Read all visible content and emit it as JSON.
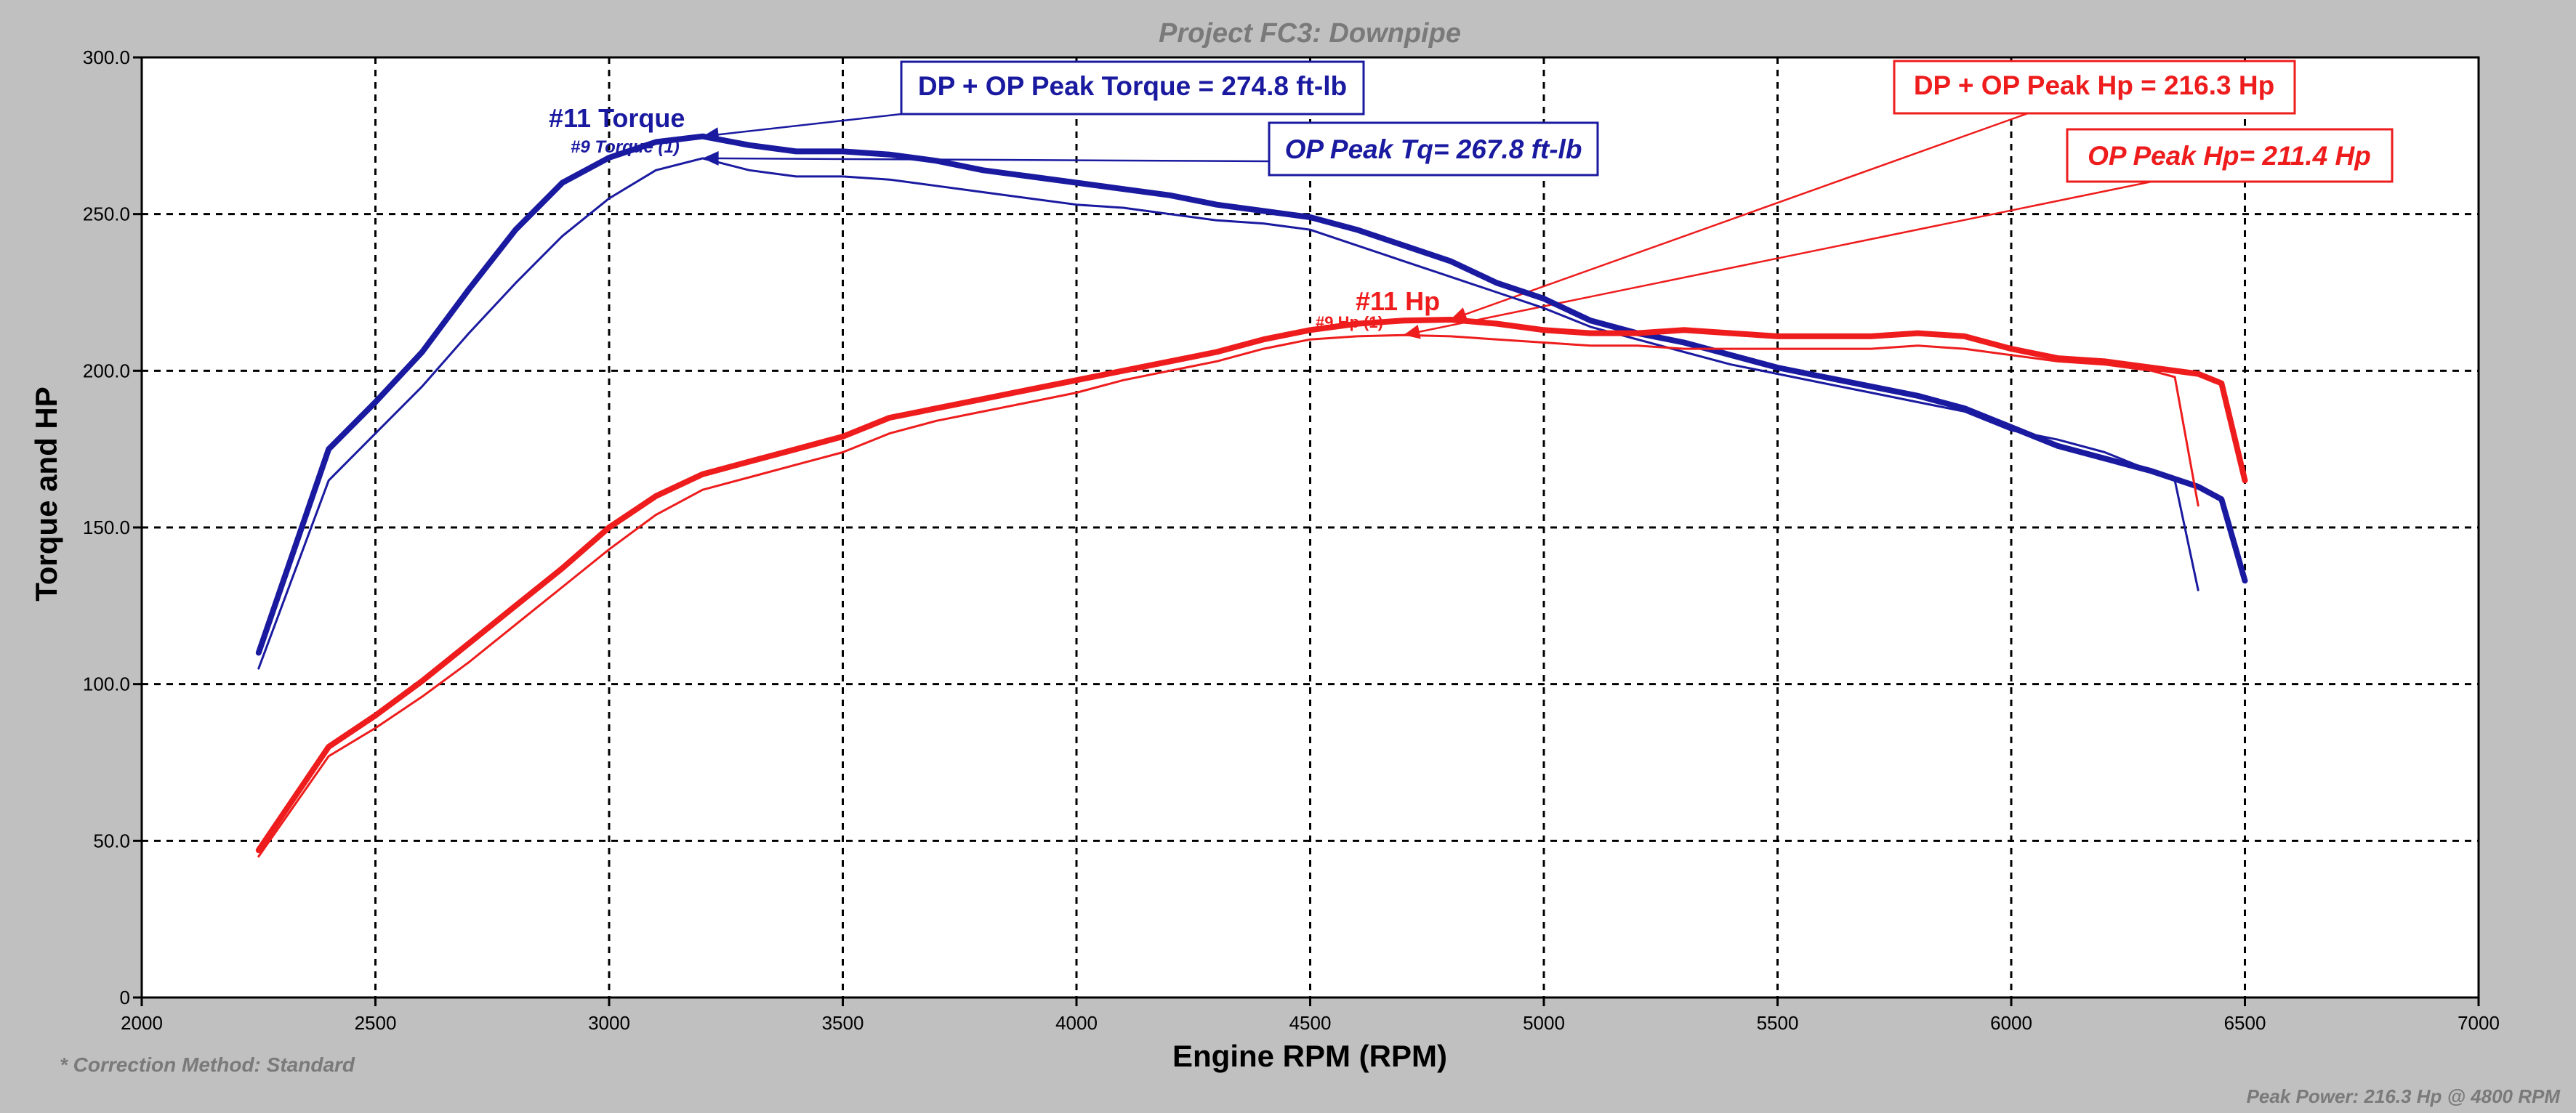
{
  "chart_data": {
    "type": "line",
    "title": "Project FC3: Downpipe",
    "xlabel": "Engine RPM (RPM)",
    "ylabel": "Torque and HP",
    "xlim": [
      2000,
      7000
    ],
    "ylim": [
      0,
      300
    ],
    "x_ticks": [
      2000,
      2500,
      3000,
      3500,
      4000,
      4500,
      5000,
      5500,
      6000,
      6500,
      7000
    ],
    "y_ticks": [
      0,
      50,
      100,
      150,
      200,
      250,
      300
    ],
    "y_tick_labels": [
      "0",
      "50.0",
      "100.0",
      "150.0",
      "200.0",
      "250.0",
      "300.0"
    ],
    "grid": true,
    "series": [
      {
        "name": "#11 Torque",
        "color": "#1a1aa0",
        "weight": "thick",
        "points": [
          [
            2250,
            110
          ],
          [
            2400,
            175
          ],
          [
            2500,
            190
          ],
          [
            2600,
            206
          ],
          [
            2700,
            226
          ],
          [
            2800,
            245
          ],
          [
            2900,
            260
          ],
          [
            3000,
            268
          ],
          [
            3100,
            273
          ],
          [
            3200,
            274.8
          ],
          [
            3300,
            272
          ],
          [
            3400,
            270
          ],
          [
            3500,
            270
          ],
          [
            3600,
            269
          ],
          [
            3700,
            267
          ],
          [
            3800,
            264
          ],
          [
            3900,
            262
          ],
          [
            4000,
            260
          ],
          [
            4100,
            258
          ],
          [
            4200,
            256
          ],
          [
            4300,
            253
          ],
          [
            4400,
            251
          ],
          [
            4500,
            249
          ],
          [
            4600,
            245
          ],
          [
            4700,
            240
          ],
          [
            4800,
            235
          ],
          [
            4900,
            228
          ],
          [
            5000,
            223
          ],
          [
            5100,
            216
          ],
          [
            5200,
            212
          ],
          [
            5300,
            209
          ],
          [
            5400,
            205
          ],
          [
            5500,
            201
          ],
          [
            5600,
            198
          ],
          [
            5700,
            195
          ],
          [
            5800,
            192
          ],
          [
            5900,
            188
          ],
          [
            6000,
            182
          ],
          [
            6100,
            176
          ],
          [
            6200,
            172
          ],
          [
            6300,
            168
          ],
          [
            6400,
            163
          ],
          [
            6450,
            159
          ],
          [
            6500,
            133
          ]
        ]
      },
      {
        "name": "#9 Torque (1)",
        "color": "#1a1aa0",
        "weight": "thin",
        "points": [
          [
            2250,
            105
          ],
          [
            2400,
            165
          ],
          [
            2500,
            180
          ],
          [
            2600,
            195
          ],
          [
            2700,
            212
          ],
          [
            2800,
            228
          ],
          [
            2900,
            243
          ],
          [
            3000,
            255
          ],
          [
            3100,
            264
          ],
          [
            3200,
            267.8
          ],
          [
            3300,
            264
          ],
          [
            3400,
            262
          ],
          [
            3500,
            262
          ],
          [
            3600,
            261
          ],
          [
            3700,
            259
          ],
          [
            3800,
            257
          ],
          [
            3900,
            255
          ],
          [
            4000,
            253
          ],
          [
            4100,
            252
          ],
          [
            4200,
            250
          ],
          [
            4300,
            248
          ],
          [
            4400,
            247
          ],
          [
            4500,
            245
          ],
          [
            4600,
            240
          ],
          [
            4700,
            235
          ],
          [
            4800,
            230
          ],
          [
            4900,
            225
          ],
          [
            5000,
            220
          ],
          [
            5100,
            214
          ],
          [
            5200,
            210
          ],
          [
            5300,
            206
          ],
          [
            5400,
            202
          ],
          [
            5500,
            199
          ],
          [
            5600,
            196
          ],
          [
            5700,
            193
          ],
          [
            5800,
            190
          ],
          [
            5900,
            187
          ],
          [
            6000,
            181
          ],
          [
            6100,
            178
          ],
          [
            6200,
            174
          ],
          [
            6300,
            168
          ],
          [
            6350,
            165
          ],
          [
            6400,
            130
          ]
        ]
      },
      {
        "name": "#11 Hp",
        "color": "#ee1c1c",
        "weight": "thick",
        "points": [
          [
            2250,
            47
          ],
          [
            2400,
            80
          ],
          [
            2500,
            90
          ],
          [
            2600,
            101
          ],
          [
            2700,
            113
          ],
          [
            2800,
            125
          ],
          [
            2900,
            137
          ],
          [
            3000,
            150
          ],
          [
            3100,
            160
          ],
          [
            3200,
            167
          ],
          [
            3300,
            171
          ],
          [
            3400,
            175
          ],
          [
            3500,
            179
          ],
          [
            3600,
            185
          ],
          [
            3700,
            188
          ],
          [
            3800,
            191
          ],
          [
            3900,
            194
          ],
          [
            4000,
            197
          ],
          [
            4100,
            200
          ],
          [
            4200,
            203
          ],
          [
            4300,
            206
          ],
          [
            4400,
            210
          ],
          [
            4500,
            213
          ],
          [
            4600,
            215
          ],
          [
            4700,
            216
          ],
          [
            4800,
            216.3
          ],
          [
            4900,
            215
          ],
          [
            5000,
            213
          ],
          [
            5100,
            212
          ],
          [
            5200,
            212
          ],
          [
            5300,
            213
          ],
          [
            5400,
            212
          ],
          [
            5500,
            211
          ],
          [
            5600,
            211
          ],
          [
            5700,
            211
          ],
          [
            5800,
            212
          ],
          [
            5900,
            211
          ],
          [
            6000,
            207
          ],
          [
            6100,
            204
          ],
          [
            6200,
            203
          ],
          [
            6300,
            201
          ],
          [
            6400,
            199
          ],
          [
            6450,
            196
          ],
          [
            6500,
            165
          ]
        ]
      },
      {
        "name": "#9 Hp (1)",
        "color": "#ee1c1c",
        "weight": "thin",
        "points": [
          [
            2250,
            45
          ],
          [
            2400,
            77
          ],
          [
            2500,
            86
          ],
          [
            2600,
            96
          ],
          [
            2700,
            107
          ],
          [
            2800,
            119
          ],
          [
            2900,
            131
          ],
          [
            3000,
            143
          ],
          [
            3100,
            154
          ],
          [
            3200,
            162
          ],
          [
            3300,
            166
          ],
          [
            3400,
            170
          ],
          [
            3500,
            174
          ],
          [
            3600,
            180
          ],
          [
            3700,
            184
          ],
          [
            3800,
            187
          ],
          [
            3900,
            190
          ],
          [
            4000,
            193
          ],
          [
            4100,
            197
          ],
          [
            4200,
            200
          ],
          [
            4300,
            203
          ],
          [
            4400,
            207
          ],
          [
            4500,
            210
          ],
          [
            4600,
            211
          ],
          [
            4700,
            211.4
          ],
          [
            4800,
            211
          ],
          [
            4900,
            210
          ],
          [
            5000,
            209
          ],
          [
            5100,
            208
          ],
          [
            5200,
            208
          ],
          [
            5300,
            207
          ],
          [
            5400,
            207
          ],
          [
            5500,
            207
          ],
          [
            5600,
            207
          ],
          [
            5700,
            207
          ],
          [
            5800,
            208
          ],
          [
            5900,
            207
          ],
          [
            6000,
            205
          ],
          [
            6100,
            203
          ],
          [
            6200,
            202
          ],
          [
            6300,
            200
          ],
          [
            6350,
            198
          ],
          [
            6400,
            157
          ]
        ]
      }
    ],
    "annotations": [
      {
        "text": "#11 Torque",
        "color": "#1a1aa0"
      },
      {
        "text": "#9 Torque (1)",
        "color": "#1a1aa0"
      },
      {
        "text": "#11 Hp",
        "color": "#ee1c1c"
      },
      {
        "text": "#9 Hp (1)",
        "color": "#ee1c1c"
      },
      {
        "text": "DP + OP Peak Torque = 274.8 ft-lb",
        "color": "#1a1aa0",
        "boxed": true,
        "target": [
          3200,
          274.8
        ]
      },
      {
        "text": "OP Peak Tq= 267.8 ft-lb",
        "color": "#1a1aa0",
        "boxed": true,
        "italic": true,
        "target": [
          3200,
          267.8
        ]
      },
      {
        "text": "DP + OP Peak Hp = 216.3 Hp",
        "color": "#ee1c1c",
        "boxed": true,
        "target": [
          4800,
          216.3
        ]
      },
      {
        "text": "OP Peak Hp= 211.4 Hp",
        "color": "#ee1c1c",
        "boxed": true,
        "italic": true,
        "target": [
          4700,
          211.4
        ]
      }
    ],
    "footnote_left": "* Correction Method: Standard",
    "footnote_right": "Peak Power: 216.3 Hp @ 4800 RPM"
  }
}
